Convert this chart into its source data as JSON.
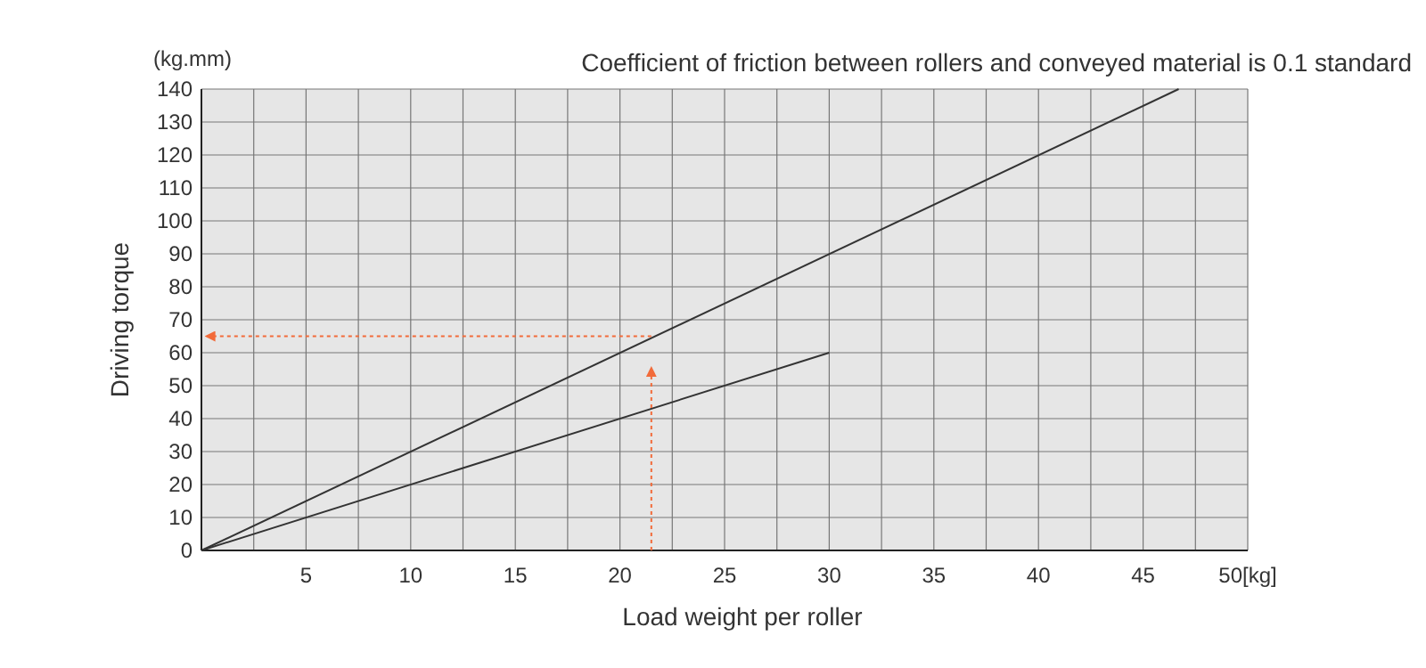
{
  "chart_data": {
    "type": "line",
    "title": "Coefficient of friction between rollers and conveyed material is 0.1 standard",
    "xlabel": "Load weight per roller",
    "ylabel": "Driving torque",
    "annotations": [
      "(kg.mm)"
    ],
    "series": [
      {
        "color": "#333333",
        "x": [
          0,
          46.7
        ],
        "values": [
          0,
          140
        ]
      },
      {
        "color": "#333333",
        "x": [
          0,
          30
        ],
        "values": [
          0,
          60
        ]
      }
    ],
    "xlim": [
      0,
      50
    ],
    "xticks": [
      5,
      10,
      15,
      20,
      25,
      30,
      35,
      40,
      45,
      {
        "value": 50,
        "label": "50[kg]"
      }
    ],
    "ylim": [
      0,
      140
    ],
    "yticks": [
      0,
      10,
      20,
      30,
      40,
      50,
      60,
      70,
      80,
      90,
      100,
      110,
      120,
      130,
      140
    ],
    "grid": true,
    "ref_lines": [
      {
        "axis": "x",
        "value": 21.5,
        "color": "#f26b3a",
        "line_style": "dotted"
      },
      {
        "axis": "y",
        "value": 65,
        "color": "#f26b3a",
        "line_style": "dotted"
      }
    ]
  }
}
